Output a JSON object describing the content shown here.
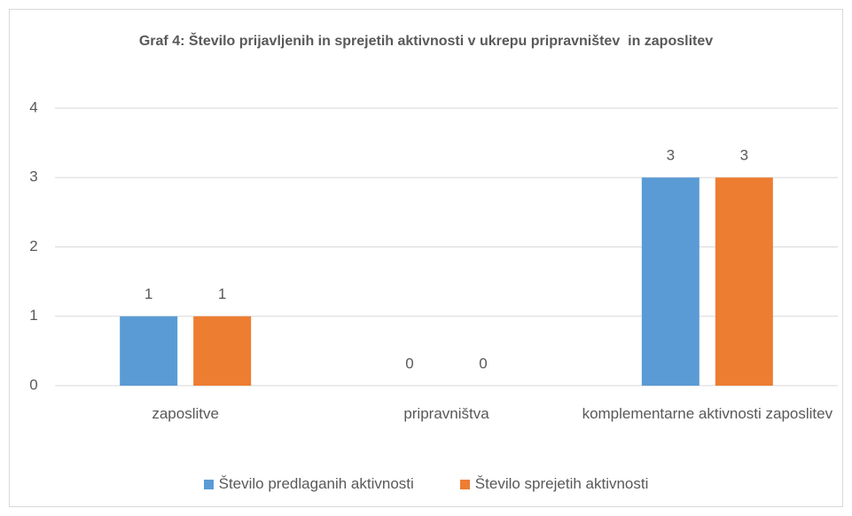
{
  "chart_data": {
    "type": "bar",
    "title": "Graf 4: Število prijavljenih in sprejetih aktivnosti v ukrepu pripravništev  in zaposlitev",
    "categories": [
      "zaposlitve",
      "pripravništva",
      "komplementarne aktivnosti zaposlitev"
    ],
    "series": [
      {
        "name": "Število predlaganih aktivnosti",
        "color": "#5b9bd5",
        "values": [
          1,
          0,
          3
        ]
      },
      {
        "name": "Število sprejetih aktivnosti",
        "color": "#ed7d31",
        "values": [
          1,
          0,
          3
        ]
      }
    ],
    "ylim": [
      0,
      4
    ],
    "yticks": [
      0,
      1,
      2,
      3,
      4
    ],
    "grid": true,
    "legend": "bottom"
  }
}
